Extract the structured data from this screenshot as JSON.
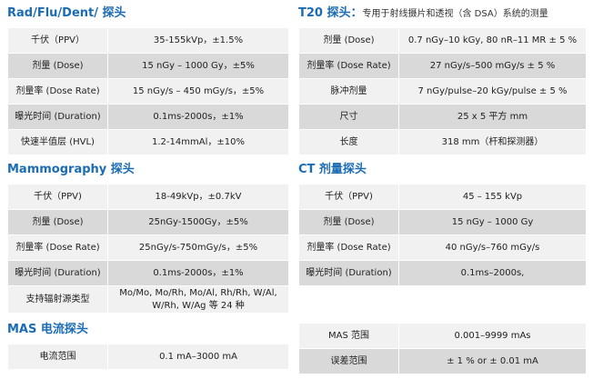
{
  "sections": [
    {
      "title": "Rad/Flu/Dent/ 探头",
      "rows": [
        [
          "千伏（PPV）",
          "35-155kVp，±1.5%"
        ],
        [
          "剂量 (Dose)",
          "15 nGy – 1000 Gy，±5%"
        ],
        [
          "剂量率 (Dose Rate)",
          "15 nGy/s – 450 mGy/s，±5%"
        ],
        [
          "曝光时间 (Duration)",
          "0.1ms-2000s，±1%"
        ],
        [
          "快速半值层 (HVL)",
          "1.2-14mmAl，±10%"
        ]
      ]
    },
    {
      "title": "Mammography 探头",
      "rows": [
        [
          "千伏（PPV)",
          "18-49kVp，±0.7kV"
        ],
        [
          "剂量 (Dose)",
          "25nGy-1500Gy，±5%"
        ],
        [
          "剂量率 (Dose Rate)",
          "25nGy/s-750mGy/s，±5%"
        ],
        [
          "曝光时间 (Duration)",
          "0.1ms-2000s，±1%"
        ],
        [
          "支持辐射源类型",
          "Mo/Mo, Mo/Rh, Mo/Al, Rh/Rh, W/Al, W/Rh, W/Ag 等 24 种"
        ]
      ]
    },
    {
      "title": "MAS 电流探头",
      "rows": [
        [
          "电流范围",
          "0.1 mA–3000 mA"
        ]
      ]
    },
    {
      "title": "T20 探头：",
      "subtitle": "专用于射线摄片和透视（含 DSA）系统的测量",
      "rows": [
        [
          "剂量 (Dose)",
          "0.7 nGy–10 kGy, 80 nR–11 MR ± 5 %"
        ],
        [
          "剂量率 (Dose Rate)",
          "27 nGy/s–500 mGy/s ± 5 %"
        ],
        [
          "脉冲剂量",
          "7 nGy/pulse–20 kGy/pulse ± 5 %"
        ],
        [
          "尺寸",
          "25 x 5 平方 mm"
        ],
        [
          "长度",
          "318 mm（杆和探测器）"
        ]
      ]
    },
    {
      "title": "CT 剂量探头",
      "rows": [
        [
          "千伏（PPV)",
          "45 – 155 kVp"
        ],
        [
          "剂量 (Dose)",
          "15 nGy – 1000 Gy"
        ],
        [
          "剂量率 (Dose Rate)",
          "40 nGy/s–760 mGy/s"
        ],
        [
          "曝光时间 (Duration)",
          "0.1ms–2000s,"
        ]
      ]
    },
    {
      "rows": [
        [
          "MAS 范围",
          "0.001–9999 mAs"
        ],
        [
          "误差范围",
          "± 1 % or ± 0.01 mA"
        ]
      ]
    }
  ]
}
